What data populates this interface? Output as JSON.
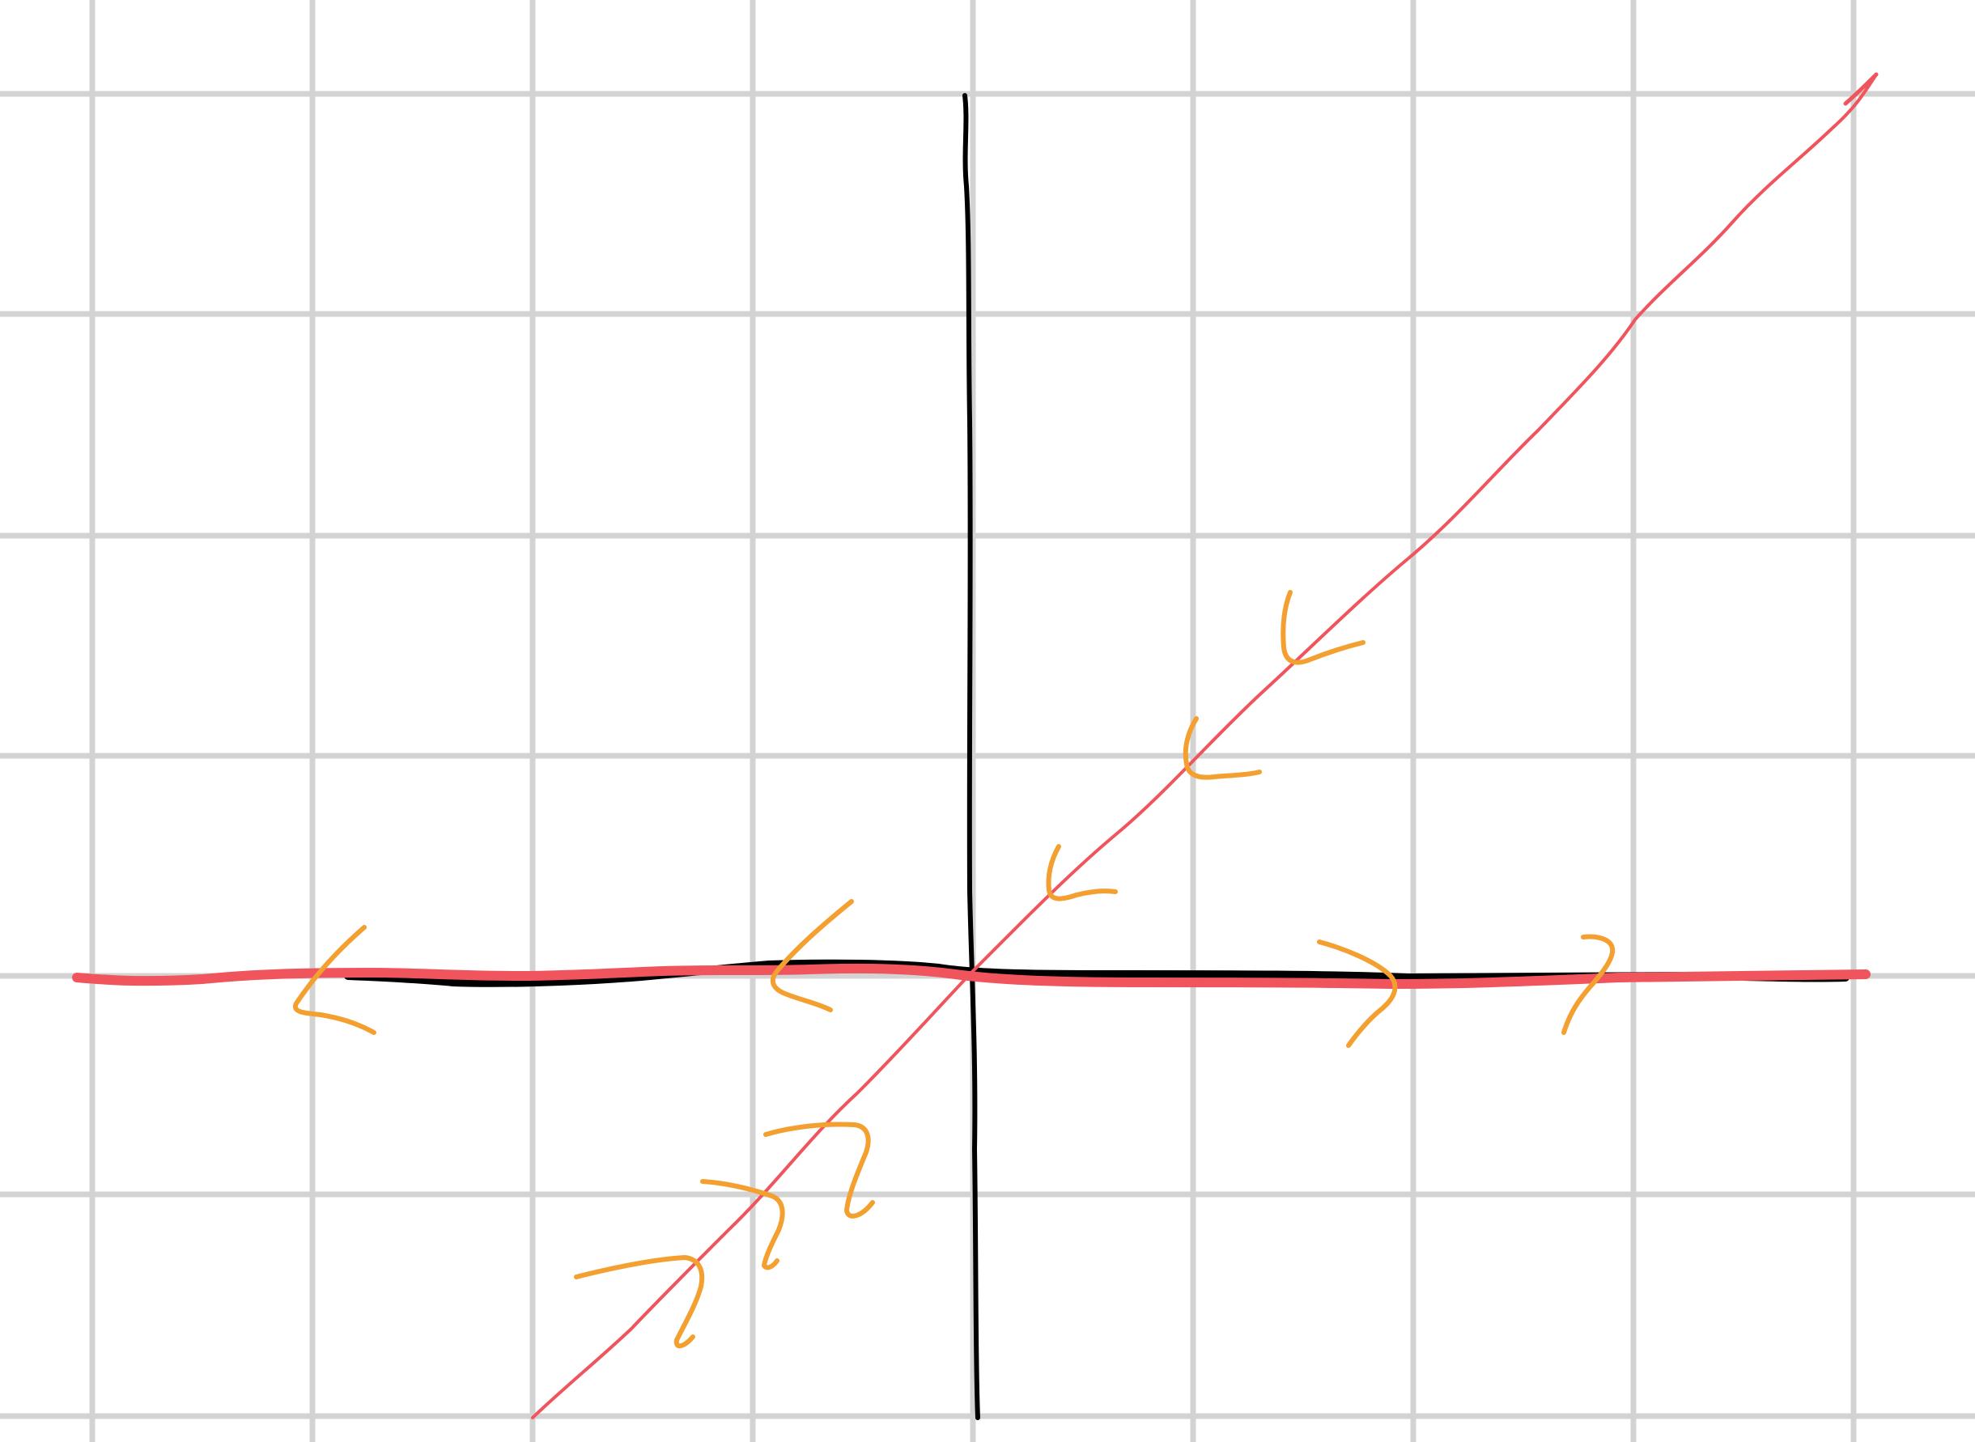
{
  "colors": {
    "background": "#ffffff",
    "grid": "#d3d3d3",
    "axes": "#000000",
    "lines": "#f0545c",
    "arrows": "#f4a030"
  },
  "diagram": {
    "type": "phase-portrait-sketch",
    "grid": true,
    "axes_drawn": true,
    "text_labels": []
  }
}
